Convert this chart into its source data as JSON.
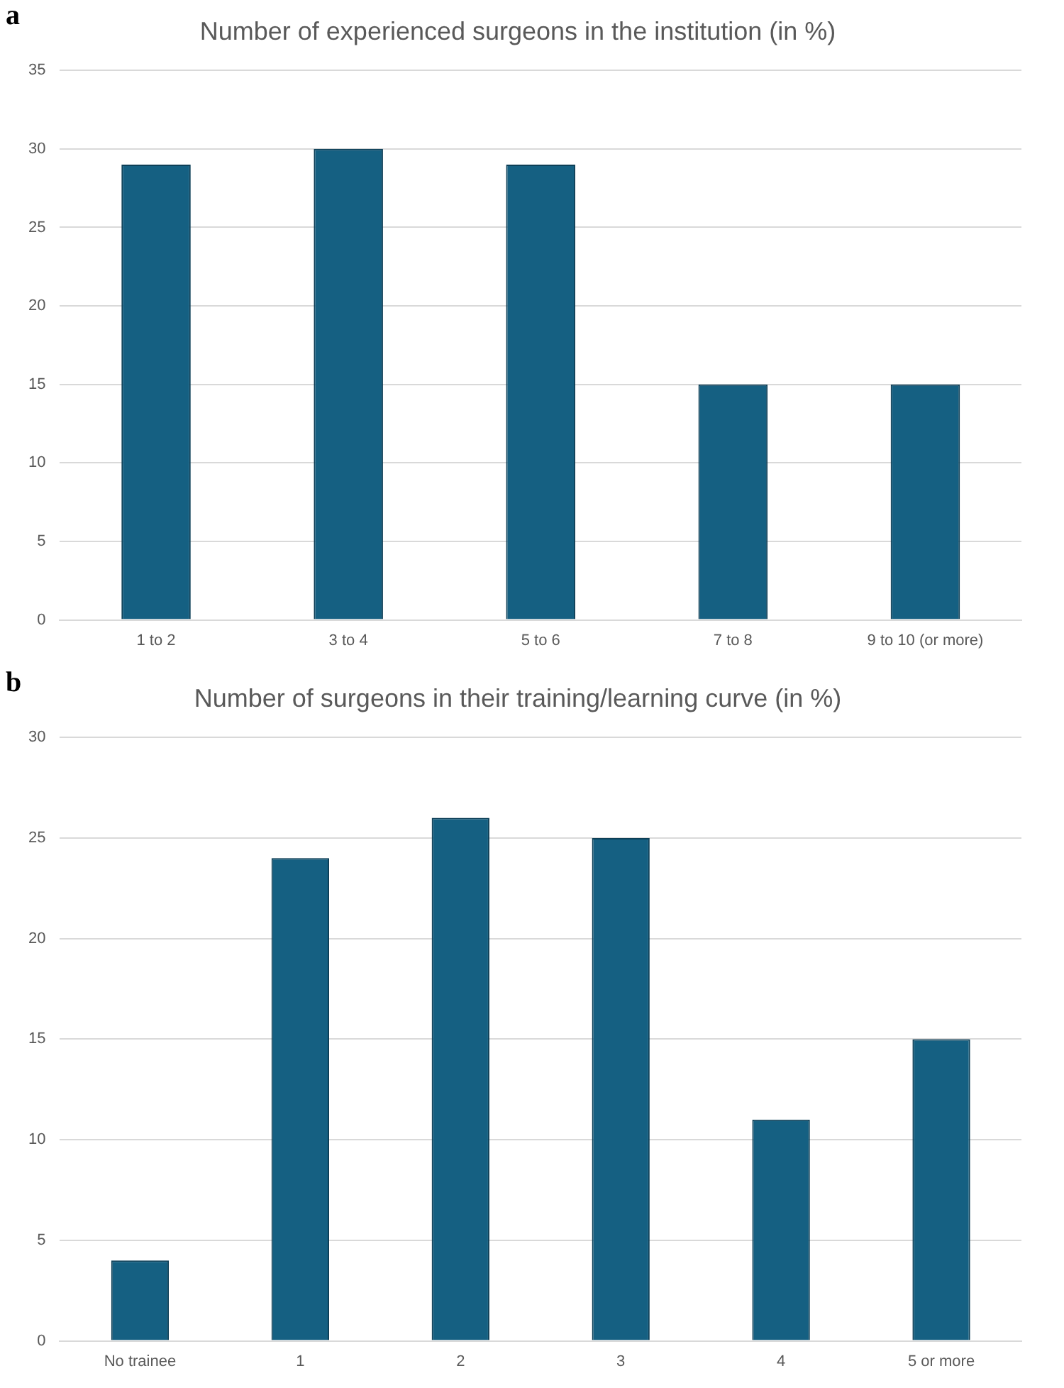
{
  "chart_data": [
    {
      "type": "bar",
      "title": "Number of experienced surgeons in the institution (in %)",
      "annotations": [
        "a"
      ],
      "categories": [
        "1 to 2",
        "3 to 4",
        "5 to 6",
        "7 to 8",
        "9 to 10 (or more)"
      ],
      "values": [
        29,
        30,
        29,
        15,
        15
      ],
      "color": "#156082",
      "ylim": [
        0,
        35
      ],
      "yticks": [
        0,
        5,
        10,
        15,
        20,
        25,
        30,
        35
      ],
      "grid": "y",
      "legend": false
    },
    {
      "type": "bar",
      "title": "Number of surgeons in their training/learning curve (in %)",
      "annotations": [
        "b"
      ],
      "categories": [
        "No trainee",
        "1",
        "2",
        "3",
        "4",
        "5 or more"
      ],
      "values": [
        4,
        24,
        26,
        25,
        11,
        15
      ],
      "color": "#156082",
      "ylim": [
        0,
        30
      ],
      "yticks": [
        0,
        5,
        10,
        15,
        20,
        25,
        30
      ],
      "grid": "y",
      "legend": false
    }
  ]
}
